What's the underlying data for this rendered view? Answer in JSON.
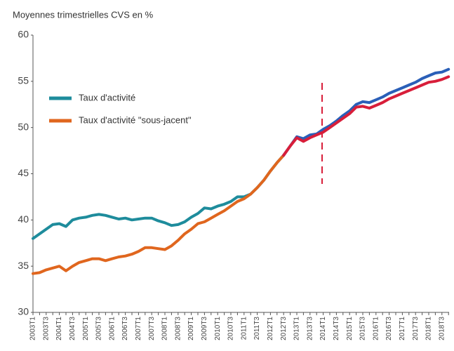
{
  "chart_data": {
    "type": "line",
    "title": "Moyennes trimestrielles CVS en %",
    "categories": [
      "2003T1",
      null,
      "2003T3",
      null,
      "2004T1",
      null,
      "2004T3",
      null,
      "2005T1",
      null,
      "2005T3",
      null,
      "2006T1",
      null,
      "2006T3",
      null,
      "2007T1",
      null,
      "2007T3",
      null,
      "2008T1",
      null,
      "2008T3",
      null,
      "2009T1",
      null,
      "2009T3",
      null,
      "2010T1",
      null,
      "2010T3",
      null,
      "2011T1",
      null,
      "2011T3",
      null,
      "2012T1",
      null,
      "2012T3",
      null,
      "2013T1",
      null,
      "2013T3",
      null,
      "2014T1",
      null,
      "2014T3",
      null,
      "2015T1",
      null,
      "2015T3",
      null,
      "2016T1",
      null,
      "2016T3",
      null,
      "2017T1",
      null,
      "2017T3",
      null,
      "2018T1",
      null,
      "2018T3",
      null
    ],
    "ylim": [
      30,
      60
    ],
    "yticks": [
      30,
      35,
      40,
      45,
      50,
      55,
      60
    ],
    "series": [
      {
        "name": "Taux d'activité",
        "color": "#1e8c9c",
        "values": [
          38.0,
          38.5,
          39.0,
          39.5,
          39.6,
          39.3,
          40.0,
          40.2,
          40.3,
          40.5,
          40.6,
          40.5,
          40.3,
          40.1,
          40.2,
          40.0,
          40.1,
          40.2,
          40.2,
          39.9,
          39.7,
          39.4,
          39.5,
          39.8,
          40.3,
          40.7,
          41.3,
          41.2,
          41.5,
          41.7,
          42.0,
          42.5,
          42.5,
          42.8,
          43.5,
          44.3,
          45.3,
          46.2,
          47.0,
          null,
          null,
          null,
          null,
          null,
          null,
          null,
          null,
          null,
          null,
          null,
          null,
          null,
          null,
          null,
          null,
          null,
          null,
          null,
          null,
          null,
          null,
          null,
          null,
          null
        ]
      },
      {
        "name": "Taux d'activité \"sous-jacent\"",
        "color": "#e0661e",
        "values": [
          34.2,
          34.3,
          34.6,
          34.8,
          35.0,
          34.5,
          35.0,
          35.4,
          35.6,
          35.8,
          35.8,
          35.6,
          35.8,
          36.0,
          36.1,
          36.3,
          36.6,
          37.0,
          37.0,
          36.9,
          36.8,
          37.2,
          37.8,
          38.5,
          39.0,
          39.6,
          39.8,
          40.2,
          40.6,
          41.0,
          41.5,
          42.0,
          42.3,
          42.8,
          43.5,
          44.3,
          45.3,
          46.2,
          47.0,
          null,
          null,
          null,
          null,
          null,
          null,
          null,
          null,
          null,
          null,
          null,
          null,
          null,
          null,
          null,
          null,
          null,
          null,
          null,
          null,
          null,
          null,
          null,
          null,
          null
        ]
      },
      {
        "color": "#2a5fb8",
        "values": [
          null,
          null,
          null,
          null,
          null,
          null,
          null,
          null,
          null,
          null,
          null,
          null,
          null,
          null,
          null,
          null,
          null,
          null,
          null,
          null,
          null,
          null,
          null,
          null,
          null,
          null,
          null,
          null,
          null,
          null,
          null,
          null,
          null,
          null,
          null,
          null,
          null,
          null,
          47.0,
          48.0,
          49.0,
          48.8,
          49.2,
          49.3,
          49.8,
          50.2,
          50.7,
          51.3,
          51.8,
          52.5,
          52.8,
          52.7,
          53.0,
          53.3,
          53.7,
          54.0,
          54.3,
          54.6,
          54.9,
          55.3,
          55.6,
          55.9,
          56.0,
          56.3
        ]
      },
      {
        "color": "#d81e3a",
        "values": [
          null,
          null,
          null,
          null,
          null,
          null,
          null,
          null,
          null,
          null,
          null,
          null,
          null,
          null,
          null,
          null,
          null,
          null,
          null,
          null,
          null,
          null,
          null,
          null,
          null,
          null,
          null,
          null,
          null,
          null,
          null,
          null,
          null,
          null,
          null,
          null,
          null,
          null,
          47.0,
          48.0,
          48.9,
          48.5,
          48.9,
          49.2,
          49.5,
          50.0,
          50.5,
          51.0,
          51.5,
          52.2,
          52.3,
          52.1,
          52.4,
          52.7,
          53.1,
          53.4,
          53.7,
          54.0,
          54.3,
          54.6,
          54.9,
          55.0,
          55.2,
          55.5
        ]
      }
    ]
  }
}
